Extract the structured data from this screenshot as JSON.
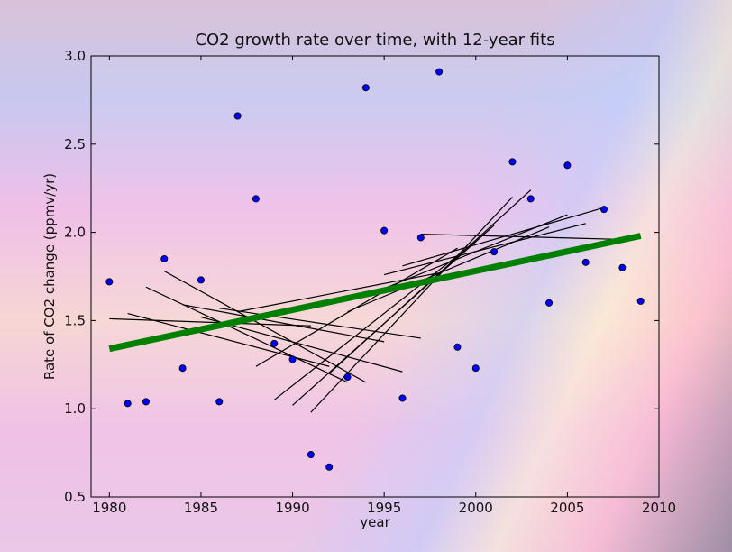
{
  "chart_data": {
    "type": "scatter",
    "title": "CO2 growth rate over time, with 12-year fits",
    "xlabel": "year",
    "ylabel": "Rate of CO2 change (ppmv/yr)",
    "xlim": [
      1979,
      2010
    ],
    "ylim": [
      0.5,
      3.0
    ],
    "xticks": [
      1980,
      1985,
      1990,
      1995,
      2000,
      2005,
      2010
    ],
    "yticks": [
      0.5,
      1.0,
      1.5,
      2.0,
      2.5,
      3.0
    ],
    "xtick_labels": [
      "1980",
      "1985",
      "1990",
      "1995",
      "2000",
      "2005",
      "2010"
    ],
    "ytick_labels": [
      "0.5",
      "1.0",
      "1.5",
      "2.0",
      "2.5",
      "3.0"
    ],
    "grid": false,
    "points": {
      "x": [
        1980,
        1981,
        1982,
        1983,
        1984,
        1985,
        1986,
        1987,
        1988,
        1989,
        1990,
        1991,
        1992,
        1993,
        1994,
        1995,
        1996,
        1997,
        1998,
        1999,
        2000,
        2001,
        2002,
        2003,
        2004,
        2005,
        2006,
        2007,
        2008,
        2009
      ],
      "y": [
        1.72,
        1.03,
        1.04,
        1.85,
        1.23,
        1.73,
        1.04,
        2.66,
        2.19,
        1.37,
        1.28,
        0.74,
        0.67,
        1.18,
        2.82,
        2.01,
        1.06,
        1.97,
        2.91,
        1.35,
        1.23,
        1.89,
        2.4,
        2.19,
        1.6,
        2.38,
        1.83,
        2.13,
        1.8,
        1.61
      ],
      "color": "#0000ff"
    },
    "overall_fit": {
      "x": [
        1980,
        2009
      ],
      "y": [
        1.34,
        1.98
      ],
      "color": "#008000"
    },
    "window_fits": [
      {
        "x": [
          1980,
          1991
        ],
        "y": [
          1.51,
          1.47
        ]
      },
      {
        "x": [
          1981,
          1992
        ],
        "y": [
          1.54,
          1.24
        ]
      },
      {
        "x": [
          1982,
          1993
        ],
        "y": [
          1.69,
          1.15
        ]
      },
      {
        "x": [
          1983,
          1994
        ],
        "y": [
          1.78,
          1.15
        ]
      },
      {
        "x": [
          1984,
          1995
        ],
        "y": [
          1.59,
          1.38
        ]
      },
      {
        "x": [
          1985,
          1996
        ],
        "y": [
          1.52,
          1.21
        ]
      },
      {
        "x": [
          1986,
          1997
        ],
        "y": [
          1.57,
          1.4
        ]
      },
      {
        "x": [
          1987,
          1998
        ],
        "y": [
          1.55,
          1.77
        ]
      },
      {
        "x": [
          1988,
          1999
        ],
        "y": [
          1.24,
          1.91
        ]
      },
      {
        "x": [
          1989,
          2000
        ],
        "y": [
          1.05,
          1.95
        ]
      },
      {
        "x": [
          1990,
          2001
        ],
        "y": [
          1.02,
          2.04
        ]
      },
      {
        "x": [
          1991,
          2002
        ],
        "y": [
          0.98,
          2.2
        ]
      },
      {
        "x": [
          1992,
          2003
        ],
        "y": [
          1.2,
          2.24
        ]
      },
      {
        "x": [
          1993,
          2004
        ],
        "y": [
          1.55,
          2.03
        ]
      },
      {
        "x": [
          1994,
          2005
        ],
        "y": [
          1.64,
          2.1
        ]
      },
      {
        "x": [
          1995,
          2006
        ],
        "y": [
          1.76,
          2.05
        ]
      },
      {
        "x": [
          1996,
          2007
        ],
        "y": [
          1.81,
          2.14
        ]
      },
      {
        "x": [
          1997,
          2008
        ],
        "y": [
          1.99,
          1.96
        ]
      }
    ]
  }
}
